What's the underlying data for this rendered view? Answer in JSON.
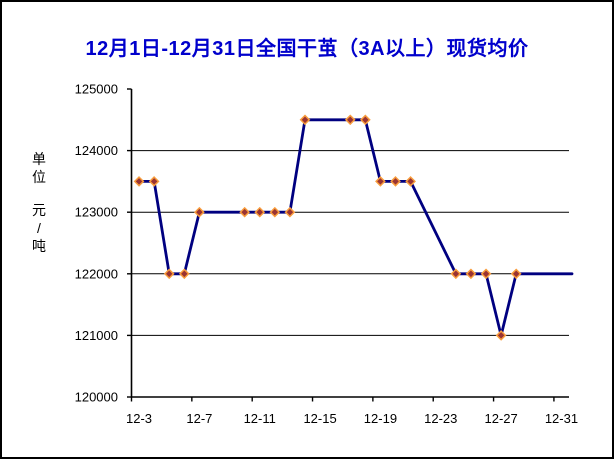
{
  "title": {
    "text": "12月1日-12月31日全国干茧（3A以上）现货均价",
    "color": "#0000CC"
  },
  "y_axis": {
    "title": "单位 元/吨",
    "title_chars": [
      "单",
      "位",
      "",
      "元",
      "/",
      "吨"
    ]
  },
  "chart_data": {
    "type": "line",
    "title": "12月1日-12月31日全国干茧（3A以上）现货均价",
    "ylabel": "单位 元/吨",
    "xlabel": "",
    "ylim": [
      120000,
      125000
    ],
    "yticks": [
      120000,
      121000,
      122000,
      123000,
      124000,
      125000
    ],
    "xtick_labels": [
      "12-3",
      "12-7",
      "12-11",
      "12-15",
      "12-19",
      "12-23",
      "12-27",
      "12-31"
    ],
    "grid": "horizontal-only",
    "legend": "none",
    "plot_background": "#FFFFFF",
    "axis_color": "#000000",
    "gridline_color": "#000000",
    "note": "Weekend dates (12-8,12-9,12-15,12-16,12-22,12-23,12-29,12-30) have no markers; line interpolates across them and extends flat to the right plot edge after 12-28.",
    "series": [
      {
        "name": "现货均价",
        "line_color": "#000080",
        "line_width": 2.8,
        "marker": {
          "shape": "diamond",
          "fill": "#993333",
          "stroke": "#F89C3C"
        },
        "points": [
          {
            "date": "12-3",
            "value": 123500
          },
          {
            "date": "12-4",
            "value": 123500
          },
          {
            "date": "12-5",
            "value": 122000
          },
          {
            "date": "12-6",
            "value": 122000
          },
          {
            "date": "12-7",
            "value": 123000
          },
          {
            "date": "12-10",
            "value": 123000
          },
          {
            "date": "12-11",
            "value": 123000
          },
          {
            "date": "12-12",
            "value": 123000
          },
          {
            "date": "12-13",
            "value": 123000
          },
          {
            "date": "12-14",
            "value": 124500
          },
          {
            "date": "12-17",
            "value": 124500
          },
          {
            "date": "12-18",
            "value": 124500
          },
          {
            "date": "12-19",
            "value": 123500
          },
          {
            "date": "12-20",
            "value": 123500
          },
          {
            "date": "12-21",
            "value": 123500
          },
          {
            "date": "12-24",
            "value": 122000
          },
          {
            "date": "12-25",
            "value": 122000
          },
          {
            "date": "12-26",
            "value": 122000
          },
          {
            "date": "12-27",
            "value": 121000
          },
          {
            "date": "12-28",
            "value": 122000
          },
          {
            "date": "12-31",
            "value": 122000,
            "marker": false
          }
        ]
      }
    ]
  }
}
